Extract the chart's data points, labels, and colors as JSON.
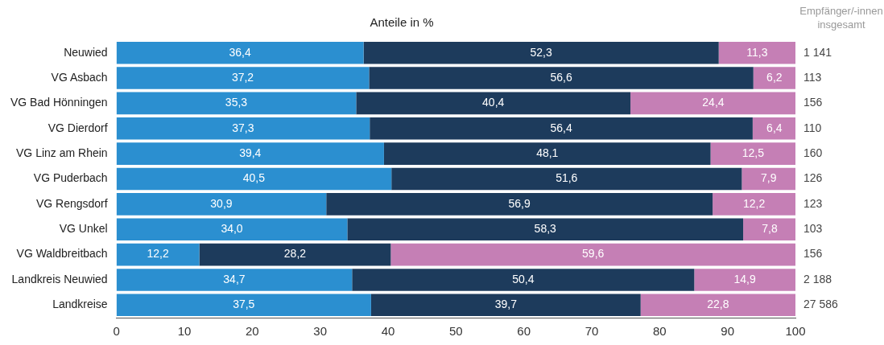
{
  "chart_data": {
    "type": "bar",
    "orientation": "horizontal",
    "stacked": true,
    "title": "Anteile in %",
    "categories": [
      "Neuwied",
      "VG Asbach",
      "VG Bad Hönningen",
      "VG Dierdorf",
      "VG Linz am Rhein",
      "VG Puderbach",
      "VG Rengsdorf",
      "VG Unkel",
      "VG Waldbreitbach",
      "Landkreis Neuwied",
      "Landkreise"
    ],
    "series": [
      {
        "color": "#2b8fd0",
        "values": [
          36.4,
          37.2,
          35.3,
          37.3,
          39.4,
          40.5,
          30.9,
          34.0,
          12.2,
          34.7,
          37.5
        ]
      },
      {
        "color": "#1d3b5c",
        "values": [
          52.3,
          56.6,
          40.4,
          56.4,
          48.1,
          51.6,
          56.9,
          58.3,
          28.2,
          50.4,
          39.7
        ]
      },
      {
        "color": "#c57fb5",
        "values": [
          11.3,
          6.2,
          24.4,
          6.4,
          12.5,
          7.9,
          12.2,
          7.8,
          59.6,
          14.9,
          22.8
        ]
      }
    ],
    "value_labels": [
      [
        "36,4",
        "37,2",
        "35,3",
        "37,3",
        "39,4",
        "40,5",
        "30,9",
        "34,0",
        "12,2",
        "34,7",
        "37,5"
      ],
      [
        "52,3",
        "56,6",
        "40,4",
        "56,4",
        "48,1",
        "51,6",
        "56,9",
        "58,3",
        "28,2",
        "50,4",
        "39,7"
      ],
      [
        "11,3",
        "6,2",
        "24,4",
        "6,4",
        "12,5",
        "7,9",
        "12,2",
        "7,8",
        "59,6",
        "14,9",
        "22,8"
      ]
    ],
    "xlim": [
      0,
      100
    ],
    "xticks": [
      0,
      10,
      20,
      30,
      40,
      50,
      60,
      70,
      80,
      90,
      100
    ],
    "grid": false,
    "legend": false,
    "annotations": [
      "Empfänger/-innen insgesamt",
      "1 141",
      "113",
      "156",
      "110",
      "160",
      "126",
      "123",
      "103",
      "156",
      "2 188",
      "27 586"
    ]
  }
}
